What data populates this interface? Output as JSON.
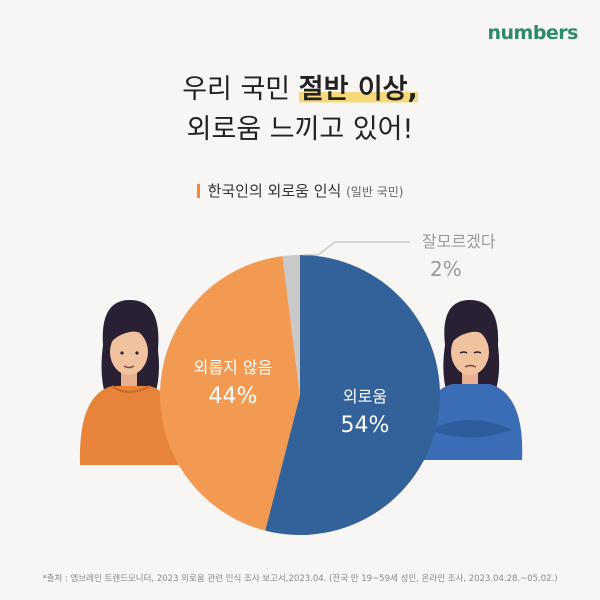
{
  "brand": "numbers",
  "headline": {
    "line1_prefix": "우리 국민",
    "line1_highlight": "절반 이상,",
    "line2": "외로움 느끼고 있어!"
  },
  "subtitle": {
    "main": "한국인의 외로움 인식",
    "note": "(일반 국민)"
  },
  "colors": {
    "lonely": "#33629b",
    "not_lonely": "#f39a52",
    "unsure": "#c9c9c9",
    "accent": "#f08a3a"
  },
  "chart_data": {
    "type": "pie",
    "title": "한국인의 외로움 인식",
    "categories": [
      "외로움",
      "외롭지 않음",
      "잘모르겠다"
    ],
    "values": [
      54,
      44,
      2
    ],
    "value_labels": [
      "54%",
      "44%",
      "2%"
    ]
  },
  "footnote": "*출처 : 엠브레인 트렌드모니터, 2023 외로움 관련 인식 조사 보고서,2023.04. (전국 만 19~59세 성인, 온라인 조사, 2023.04.28.~05.02.)"
}
